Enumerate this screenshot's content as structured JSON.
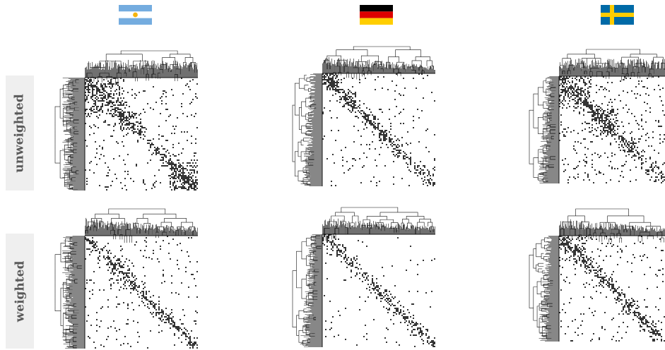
{
  "row_labels": {
    "unweighted": "unweighted",
    "weighted": "weighted"
  },
  "columns": [
    {
      "country": "Argentina",
      "flag": "argentina-flag-icon",
      "colors": [
        "#74acdf",
        "#ffffff",
        "#f6b40e"
      ]
    },
    {
      "country": "Germany",
      "flag": "germany-flag-icon",
      "colors": [
        "#000000",
        "#dd0000",
        "#ffce00"
      ]
    },
    {
      "country": "Sweden",
      "flag": "sweden-flag-icon",
      "colors": [
        "#006aa7",
        "#fecc00"
      ]
    }
  ],
  "colors": {
    "label_background": "#efefef",
    "label_text": "#5a5a5a",
    "ink": "#111111"
  }
}
